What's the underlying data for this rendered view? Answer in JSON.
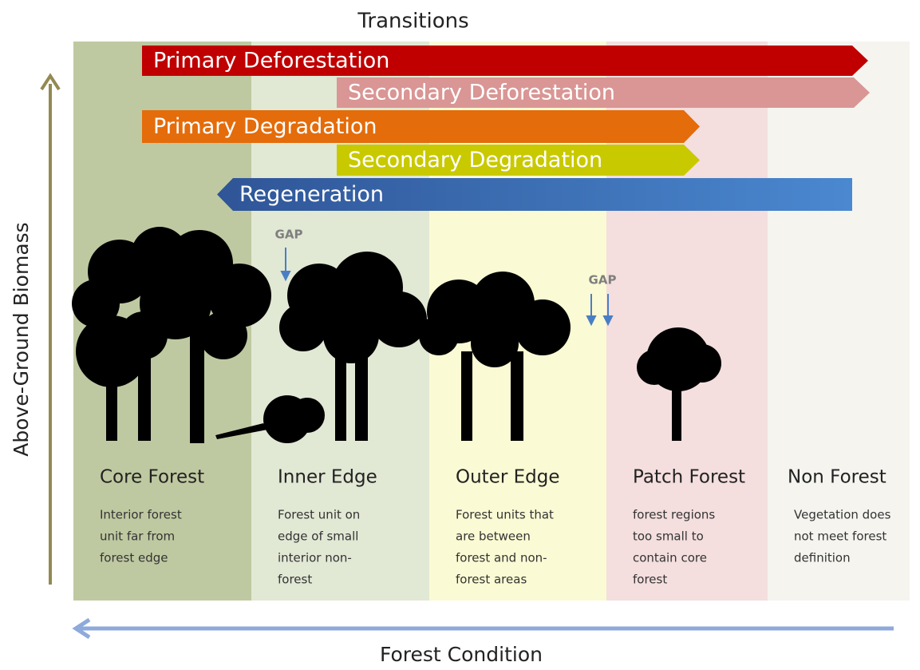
{
  "title": "Transitions",
  "y_axis_label": "Above-Ground Biomass",
  "x_axis_label": "Forest Condition",
  "transitions": [
    {
      "label": "Primary Deforestation",
      "color": "#c00000"
    },
    {
      "label": "Secondary  Deforestation",
      "color": "#d99694"
    },
    {
      "label": "Primary Degradation",
      "color": "#e46c0a"
    },
    {
      "label": "Secondary Degradation",
      "color": "#c9c900"
    },
    {
      "label": "Regeneration",
      "color": "#3a6fb5"
    }
  ],
  "zones": [
    {
      "name": "Core Forest",
      "color": "#bfc9a1",
      "description": [
        "Interior forest",
        "unit far from",
        "forest edge"
      ]
    },
    {
      "name": "Inner Edge",
      "color": "#e1e8d4",
      "description": [
        "Forest unit on",
        "edge of small",
        "interior non-",
        "forest"
      ]
    },
    {
      "name": "Outer Edge",
      "color": "#fafad4",
      "description": [
        "Forest units that",
        "are between",
        "forest and non-",
        "forest areas"
      ]
    },
    {
      "name": "Patch Forest",
      "color": "#f4dede",
      "description": [
        "forest regions",
        "too small to",
        "contain core",
        "forest"
      ]
    },
    {
      "name": "Non Forest",
      "color": "#f5f4ef",
      "description": [
        "Vegetation does",
        "not meet forest",
        "definition"
      ]
    }
  ],
  "gaps": [
    "GAP",
    "GAP"
  ]
}
